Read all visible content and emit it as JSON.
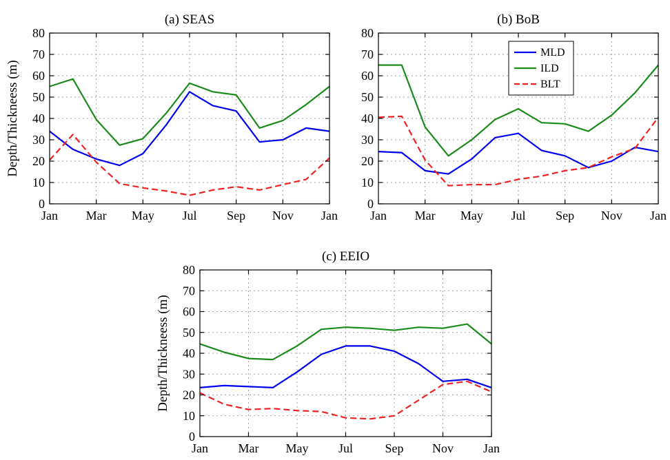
{
  "chart_data": [
    {
      "type": "line",
      "title": "(a) SEAS",
      "ylabel": "Depth/Thickneess (m)",
      "xlabel": "",
      "x_ticks": [
        "Jan",
        "Mar",
        "May",
        "Jul",
        "Sep",
        "Nov",
        "Jan"
      ],
      "ylim": [
        0,
        80
      ],
      "y_ticks": [
        0,
        10,
        20,
        30,
        40,
        50,
        60,
        70,
        80
      ],
      "x": [
        0,
        1,
        2,
        3,
        4,
        5,
        6,
        7,
        8,
        9,
        10,
        11,
        12
      ],
      "grid": true,
      "legend": false,
      "series": [
        {
          "name": "MLD",
          "color": "#0000ee",
          "dash": "solid",
          "values": [
            34,
            25.5,
            21,
            18,
            23.5,
            37,
            52.5,
            46,
            43.5,
            29,
            30,
            35.5,
            34
          ]
        },
        {
          "name": "ILD",
          "color": "#1a8a1a",
          "dash": "solid",
          "values": [
            55,
            58.5,
            39.5,
            27.5,
            30.5,
            42.5,
            56.5,
            52.5,
            51,
            35.5,
            39,
            46.5,
            55
          ]
        },
        {
          "name": "BLT",
          "color": "#ee2222",
          "dash": "dashed",
          "values": [
            20.5,
            32.5,
            19.5,
            9.5,
            7.5,
            6,
            4,
            6.5,
            8,
            6.5,
            9,
            11.5,
            21.5
          ]
        }
      ]
    },
    {
      "type": "line",
      "title": "(b) BoB",
      "ylabel": "",
      "xlabel": "",
      "x_ticks": [
        "Jan",
        "Mar",
        "May",
        "Jul",
        "Sep",
        "Nov",
        "Jan"
      ],
      "ylim": [
        0,
        80
      ],
      "y_ticks": [
        0,
        10,
        20,
        30,
        40,
        50,
        60,
        70,
        80
      ],
      "x": [
        0,
        1,
        2,
        3,
        4,
        5,
        6,
        7,
        8,
        9,
        10,
        11,
        12
      ],
      "grid": true,
      "legend": true,
      "legend_position": "top-right",
      "series": [
        {
          "name": "MLD",
          "color": "#0000ee",
          "dash": "solid",
          "values": [
            24.5,
            24,
            15.5,
            14,
            21,
            31,
            33,
            25,
            22.5,
            17,
            20,
            26.5,
            24.5
          ]
        },
        {
          "name": "ILD",
          "color": "#1a8a1a",
          "dash": "solid",
          "values": [
            65,
            65,
            36,
            22.5,
            30,
            39.5,
            44.5,
            38,
            37.5,
            34,
            41.5,
            52,
            65
          ]
        },
        {
          "name": "BLT",
          "color": "#ee2222",
          "dash": "dashed",
          "values": [
            40.5,
            41,
            20.5,
            8.5,
            9,
            9,
            11.5,
            13,
            15.5,
            17,
            22,
            26,
            40.5
          ]
        }
      ]
    },
    {
      "type": "line",
      "title": "(c) EEIO",
      "ylabel": "Depth/Thickneess (m)",
      "xlabel": "",
      "x_ticks": [
        "Jan",
        "Mar",
        "May",
        "Jul",
        "Sep",
        "Nov",
        "Jan"
      ],
      "ylim": [
        0,
        80
      ],
      "y_ticks": [
        0,
        10,
        20,
        30,
        40,
        50,
        60,
        70,
        80
      ],
      "x": [
        0,
        1,
        2,
        3,
        4,
        5,
        6,
        7,
        8,
        9,
        10,
        11,
        12
      ],
      "grid": true,
      "legend": false,
      "series": [
        {
          "name": "MLD",
          "color": "#0000ee",
          "dash": "solid",
          "values": [
            23.5,
            24.5,
            24,
            23.5,
            31,
            39.5,
            43.5,
            43.5,
            41,
            35,
            26.5,
            27.5,
            23.5
          ]
        },
        {
          "name": "ILD",
          "color": "#1a8a1a",
          "dash": "solid",
          "values": [
            44.5,
            40.5,
            37.5,
            37,
            43.5,
            51.5,
            52.5,
            52,
            51,
            52.5,
            52,
            54,
            44.5
          ]
        },
        {
          "name": "BLT",
          "color": "#ee2222",
          "dash": "dashed",
          "values": [
            21,
            15.5,
            13,
            13.5,
            12.5,
            12,
            9,
            8.5,
            10,
            17.5,
            25,
            26.5,
            21.5
          ]
        }
      ]
    }
  ]
}
